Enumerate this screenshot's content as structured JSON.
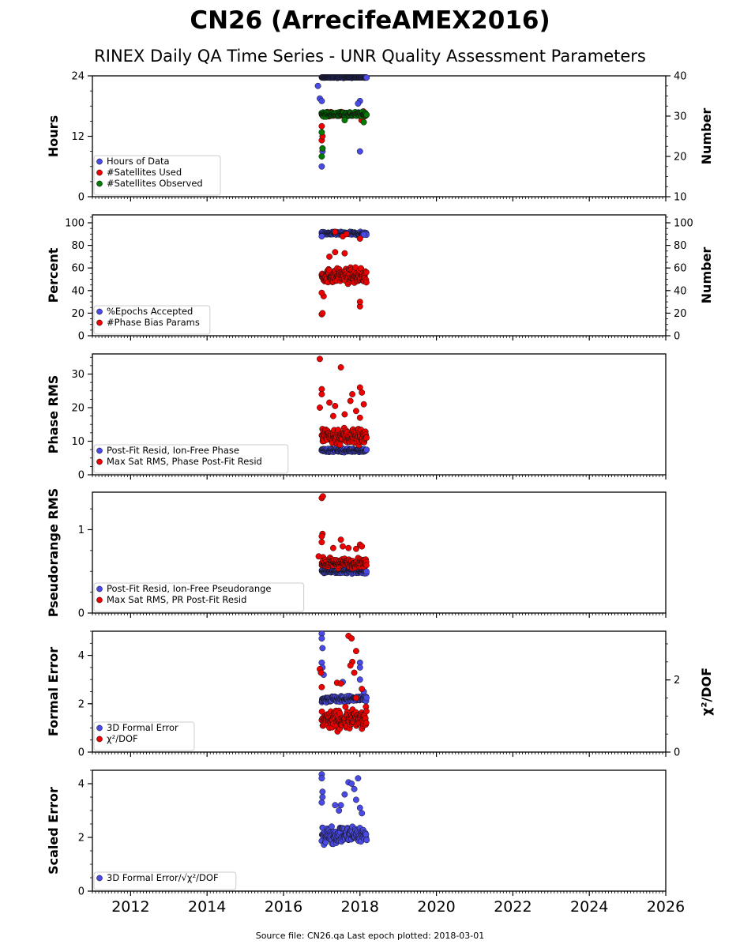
{
  "figure": {
    "title": "CN26 (ArrecifeAMEX2016)",
    "subtitle": "RINEX Daily QA Time Series - UNR Quality Assessment Parameters",
    "footer": "Source file: CN26.qa Last epoch plotted: 2018-03-01"
  },
  "colors": {
    "blue": "#4a4ae6",
    "red": "#ee0000",
    "green": "#007a00",
    "edge": "#111111"
  },
  "chart_data": [
    {
      "type": "scatter",
      "ylabel": "Hours",
      "y2label": "Number",
      "ylim": [
        0,
        24
      ],
      "y2lim": [
        10,
        40
      ],
      "xlim": [
        2011.0,
        2026.0
      ],
      "yticks": [
        0,
        12,
        24
      ],
      "y2ticks": [
        10,
        20,
        30,
        40
      ],
      "grid": false,
      "legend_placement": "lower-left",
      "series": [
        {
          "name": "Hours of Data",
          "color": "blue",
          "axis": "left",
          "x_range": [
            2017.0,
            2018.17
          ],
          "typical": 23.8,
          "spread": 0.2,
          "extremes": [
            [
              2017.0,
              6.0
            ],
            [
              2017.02,
              9.0
            ],
            [
              2016.9,
              22.0
            ],
            [
              2016.95,
              19.5
            ],
            [
              2017.0,
              19.0
            ],
            [
              2018.0,
              19.0
            ],
            [
              2017.95,
              18.5
            ],
            [
              2018.0,
              9.0
            ]
          ]
        },
        {
          "name": "#Satellites Used",
          "color": "red",
          "axis": "right",
          "x_range": [
            2017.0,
            2018.17
          ],
          "typical": 30.5,
          "spread": 0.5,
          "extremes": [
            [
              2017.0,
              24.0
            ],
            [
              2017.02,
              25.0
            ],
            [
              2017.0,
              27.5
            ],
            [
              2018.04,
              29.0
            ],
            [
              2017.02,
              22.0
            ]
          ]
        },
        {
          "name": "#Satellites Observed",
          "color": "green",
          "axis": "right",
          "x_range": [
            2017.0,
            2018.17
          ],
          "typical": 30.5,
          "spread": 0.5,
          "extremes": [
            [
              2017.0,
              20.0
            ],
            [
              2017.02,
              22.0
            ],
            [
              2017.0,
              26.0
            ],
            [
              2018.1,
              28.5
            ],
            [
              2017.6,
              29.0
            ]
          ]
        }
      ]
    },
    {
      "type": "scatter",
      "ylabel": "Percent",
      "y2label": "Number",
      "ylim": [
        0,
        107
      ],
      "y2lim": [
        0,
        107
      ],
      "xlim": [
        2011.0,
        2026.0
      ],
      "yticks": [
        0,
        20,
        40,
        60,
        80,
        100
      ],
      "y2ticks": [
        0,
        20,
        40,
        60,
        80,
        100
      ],
      "grid": false,
      "legend_placement": "lower-left",
      "series": [
        {
          "name": "%Epochs Accepted",
          "color": "blue",
          "axis": "left",
          "x_range": [
            2017.0,
            2018.17
          ],
          "typical": 90.5,
          "spread": 1.2,
          "extremes": [
            [
              2017.0,
              88.0
            ],
            [
              2018.1,
              89.5
            ]
          ]
        },
        {
          "name": "#Phase Bias Params",
          "color": "red",
          "axis": "right",
          "x_range": [
            2017.0,
            2018.17
          ],
          "typical": 53,
          "spread": 6,
          "extremes": [
            [
              2017.0,
              19.0
            ],
            [
              2017.02,
              20.0
            ],
            [
              2017.05,
              35.0
            ],
            [
              2017.0,
              38.0
            ],
            [
              2018.0,
              26.0
            ],
            [
              2018.0,
              30.0
            ],
            [
              2017.35,
              74.0
            ],
            [
              2017.6,
              73.0
            ],
            [
              2017.35,
              92.0
            ],
            [
              2017.55,
              88.0
            ],
            [
              2017.65,
              90.0
            ],
            [
              2018.0,
              86.0
            ],
            [
              2017.2,
              70.0
            ]
          ]
        }
      ]
    },
    {
      "type": "scatter",
      "ylabel": "Phase RMS",
      "ylim": [
        0,
        36
      ],
      "xlim": [
        2011.0,
        2026.0
      ],
      "yticks": [
        0,
        10,
        20,
        30
      ],
      "grid": false,
      "legend_placement": "lower-left",
      "series": [
        {
          "name": "Post-Fit Resid, Ion-Free Phase",
          "color": "blue",
          "axis": "left",
          "x_range": [
            2017.0,
            2018.17
          ],
          "typical": 7.3,
          "spread": 0.5,
          "extremes": []
        },
        {
          "name": "Max Sat RMS, Phase Post-Fit Resid",
          "color": "red",
          "axis": "left",
          "x_range": [
            2017.0,
            2018.17
          ],
          "typical": 11.5,
          "spread": 2.5,
          "extremes": [
            [
              2016.95,
              34.5
            ],
            [
              2017.5,
              32.0
            ],
            [
              2017.0,
              25.5
            ],
            [
              2017.0,
              24.0
            ],
            [
              2018.0,
              26.0
            ],
            [
              2018.05,
              24.5
            ],
            [
              2017.8,
              24.0
            ],
            [
              2017.75,
              22.0
            ],
            [
              2017.2,
              21.5
            ],
            [
              2017.35,
              20.5
            ],
            [
              2018.1,
              21.0
            ],
            [
              2017.9,
              19.0
            ],
            [
              2016.95,
              20.0
            ],
            [
              2017.6,
              18.0
            ],
            [
              2017.3,
              17.5
            ],
            [
              2018.0,
              17.0
            ]
          ]
        }
      ]
    },
    {
      "type": "scatter",
      "ylabel": "Pseudorange RMS",
      "ylim": [
        0,
        1.45
      ],
      "xlim": [
        2011.0,
        2026.0
      ],
      "yticks": [
        0,
        1
      ],
      "grid": false,
      "legend_placement": "lower-left",
      "series": [
        {
          "name": "Post-Fit Resid, Ion-Free Pseudorange",
          "color": "blue",
          "axis": "left",
          "x_range": [
            2017.0,
            2018.17
          ],
          "typical": 0.5,
          "spread": 0.02,
          "extremes": []
        },
        {
          "name": "Max Sat RMS, PR Post-Fit Resid",
          "color": "red",
          "axis": "left",
          "x_range": [
            2017.0,
            2018.17
          ],
          "typical": 0.6,
          "spread": 0.05,
          "extremes": [
            [
              2017.0,
              1.38
            ],
            [
              2017.03,
              1.4
            ],
            [
              2017.02,
              0.95
            ],
            [
              2017.0,
              0.92
            ],
            [
              2017.5,
              0.88
            ],
            [
              2017.0,
              0.85
            ],
            [
              2018.0,
              0.82
            ],
            [
              2017.55,
              0.8
            ],
            [
              2017.7,
              0.78
            ],
            [
              2017.3,
              0.78
            ],
            [
              2018.05,
              0.8
            ],
            [
              2016.92,
              0.68
            ],
            [
              2017.9,
              0.77
            ]
          ]
        }
      ]
    },
    {
      "type": "scatter",
      "ylabel": "Formal Error",
      "y2label": "χ²/DOF",
      "ylim": [
        0,
        5
      ],
      "y2lim": [
        0,
        3.35
      ],
      "xlim": [
        2011.0,
        2026.0
      ],
      "yticks": [
        0,
        2,
        4
      ],
      "y2ticks": [
        0,
        2
      ],
      "grid": false,
      "legend_placement": "lower-left",
      "series": [
        {
          "name": "3D Formal Error",
          "color": "blue",
          "axis": "left",
          "x_range": [
            2017.0,
            2018.17
          ],
          "typical": 2.2,
          "spread": 0.12,
          "extremes": [
            [
              2017.0,
              4.9
            ],
            [
              2017.0,
              4.7
            ],
            [
              2017.02,
              4.3
            ],
            [
              2017.0,
              3.7
            ],
            [
              2017.02,
              3.5
            ],
            [
              2018.0,
              3.7
            ],
            [
              2018.0,
              3.5
            ],
            [
              2018.0,
              3.0
            ],
            [
              2017.05,
              3.2
            ],
            [
              2018.1,
              2.5
            ],
            [
              2017.55,
              2.9
            ]
          ]
        },
        {
          "name": "χ²/DOF",
          "color": "red",
          "axis": "right",
          "x_range": [
            2017.0,
            2018.17
          ],
          "typical": 0.9,
          "spread": 0.25,
          "extremes": [
            [
              2016.95,
              2.3
            ],
            [
              2016.98,
              2.2
            ],
            [
              2017.0,
              1.8
            ],
            [
              2017.7,
              3.22
            ],
            [
              2017.78,
              3.15
            ],
            [
              2017.9,
              2.8
            ],
            [
              2017.8,
              2.5
            ],
            [
              2017.75,
              2.4
            ],
            [
              2017.4,
              1.92
            ],
            [
              2017.5,
              1.9
            ],
            [
              2017.85,
              2.2
            ],
            [
              2018.05,
              1.75
            ],
            [
              2017.9,
              1.5
            ]
          ]
        }
      ]
    },
    {
      "type": "scatter",
      "ylabel": "Scaled Error",
      "ylim": [
        0,
        4.5
      ],
      "xlim": [
        2011.0,
        2026.0
      ],
      "yticks": [
        0,
        2,
        4
      ],
      "xticks": [
        2012,
        2014,
        2016,
        2018,
        2020,
        2022,
        2024,
        2026
      ],
      "grid": false,
      "legend_placement": "lower-left",
      "series": [
        {
          "name": "3D Formal Error/√χ²/DOF",
          "color": "blue",
          "axis": "left",
          "x_range": [
            2017.0,
            2018.17
          ],
          "typical": 2.1,
          "spread": 0.3,
          "extremes": [
            [
              2017.0,
              4.35
            ],
            [
              2017.0,
              4.2
            ],
            [
              2017.02,
              3.7
            ],
            [
              2017.02,
              3.5
            ],
            [
              2017.0,
              3.3
            ],
            [
              2017.7,
              4.05
            ],
            [
              2017.78,
              4.0
            ],
            [
              2017.95,
              4.2
            ],
            [
              2017.85,
              3.8
            ],
            [
              2017.6,
              3.6
            ],
            [
              2017.5,
              3.2
            ],
            [
              2017.9,
              3.4
            ],
            [
              2018.0,
              3.1
            ],
            [
              2018.05,
              2.9
            ],
            [
              2017.35,
              3.2
            ],
            [
              2017.45,
              3.0
            ]
          ]
        }
      ]
    }
  ]
}
